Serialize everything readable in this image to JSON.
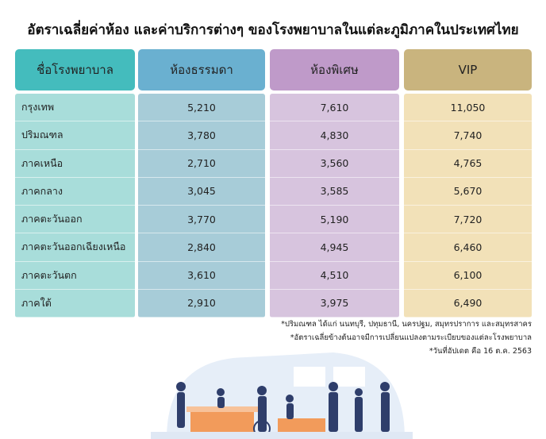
{
  "title": "อัตราเฉลี่ยค่าห้อง และค่าบริการต่างๆ ของโรงพยาบาลในแต่ละภูมิภาคในประเทศไทย",
  "colors": {
    "name_header": "#44bcbd",
    "name_body": "#a8ddda",
    "standard_header": "#6ab0d0",
    "standard_body": "#a7ccd8",
    "special_header": "#bf9ac9",
    "special_body": "#d7c4de",
    "vip_header": "#c9b47e",
    "vip_body": "#f2e1b8"
  },
  "table": {
    "headers": [
      "ชื่อโรงพยาบาล",
      "ห้องธรรมดา",
      "ห้องพิเศษ",
      "VIP"
    ],
    "rows": [
      {
        "name": "กรุงเทพ",
        "standard": "5,210",
        "special": "7,610",
        "vip": "11,050"
      },
      {
        "name": "ปริมณฑล",
        "standard": "3,780",
        "special": "4,830",
        "vip": "7,740"
      },
      {
        "name": "ภาคเหนือ",
        "standard": "2,710",
        "special": "3,560",
        "vip": "4,765"
      },
      {
        "name": "ภาคกลาง",
        "standard": "3,045",
        "special": "3,585",
        "vip": "5,670"
      },
      {
        "name": "ภาคตะวันออก",
        "standard": "3,770",
        "special": "5,190",
        "vip": "7,720"
      },
      {
        "name": "ภาคตะวันออกเฉียงเหนือ",
        "standard": "2,840",
        "special": "4,945",
        "vip": "6,460"
      },
      {
        "name": "ภาคตะวันตก",
        "standard": "3,610",
        "special": "4,510",
        "vip": "6,100"
      },
      {
        "name": "ภาคใต้",
        "standard": "2,910",
        "special": "3,975",
        "vip": "6,490"
      }
    ]
  },
  "notes": [
    "*ปริมณฑล ได้แก่ นนทบุรี, ปทุมธานี, นครปฐม, สมุทรปราการ และสมุทรสาคร",
    "*อัตราเฉลี่ยข้างต้นอาจมีการเปลี่ยนแปลงตามระเบียบของแต่ละโรงพยาบาล",
    "*วันที่อัปเดต คือ 16 ต.ค. 2563"
  ]
}
